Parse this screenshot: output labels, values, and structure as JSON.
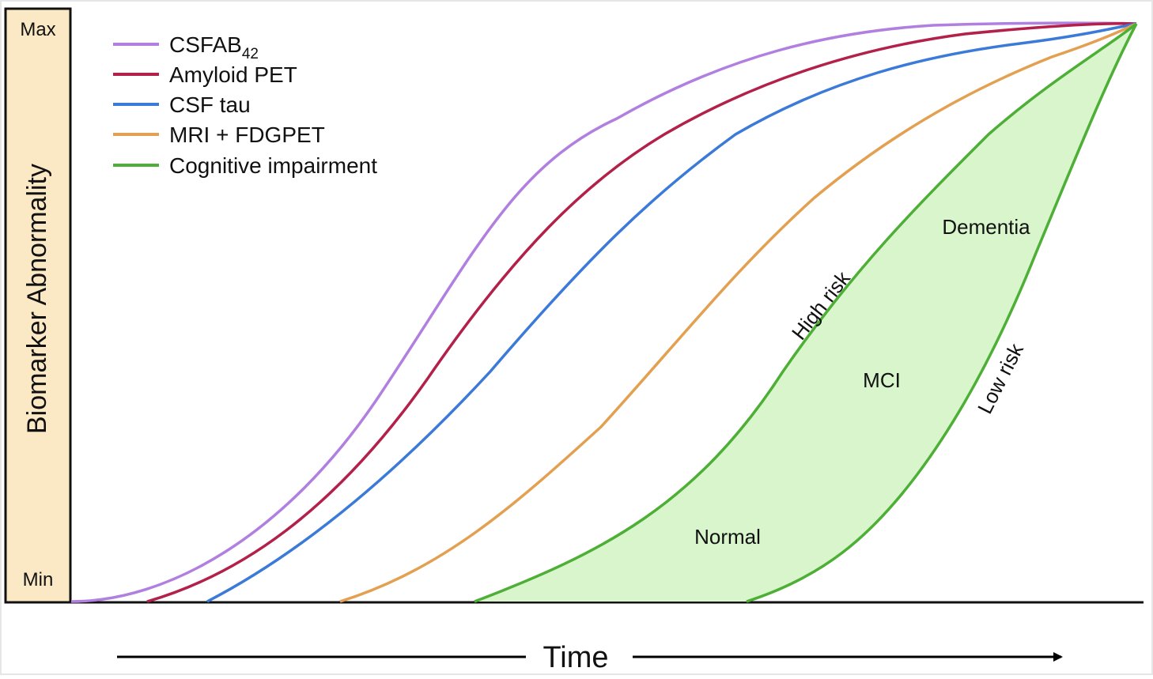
{
  "yaxis": {
    "max_label": "Max",
    "min_label": "Min",
    "title": "Biomarker Abnormality",
    "panel_color": "#fbe9c5"
  },
  "xaxis": {
    "title": "Time"
  },
  "legend": [
    {
      "label": "CSFAB",
      "subscript": "42",
      "color": "#b07fe0"
    },
    {
      "label": "Amyloid PET",
      "subscript": "",
      "color": "#b3204a"
    },
    {
      "label": "CSF tau",
      "subscript": "",
      "color": "#3b7ad8"
    },
    {
      "label": "MRI + FDGPET",
      "subscript": "",
      "color": "#e2a050"
    },
    {
      "label": "Cognitive impairment",
      "subscript": "",
      "color": "#4daf36"
    }
  ],
  "region_labels": {
    "normal": "Normal",
    "mci": "MCI",
    "dementia": "Dementia"
  },
  "risk_labels": {
    "high": "High risk",
    "low": "Low risk"
  },
  "shading_color": "#d8f5cc"
}
